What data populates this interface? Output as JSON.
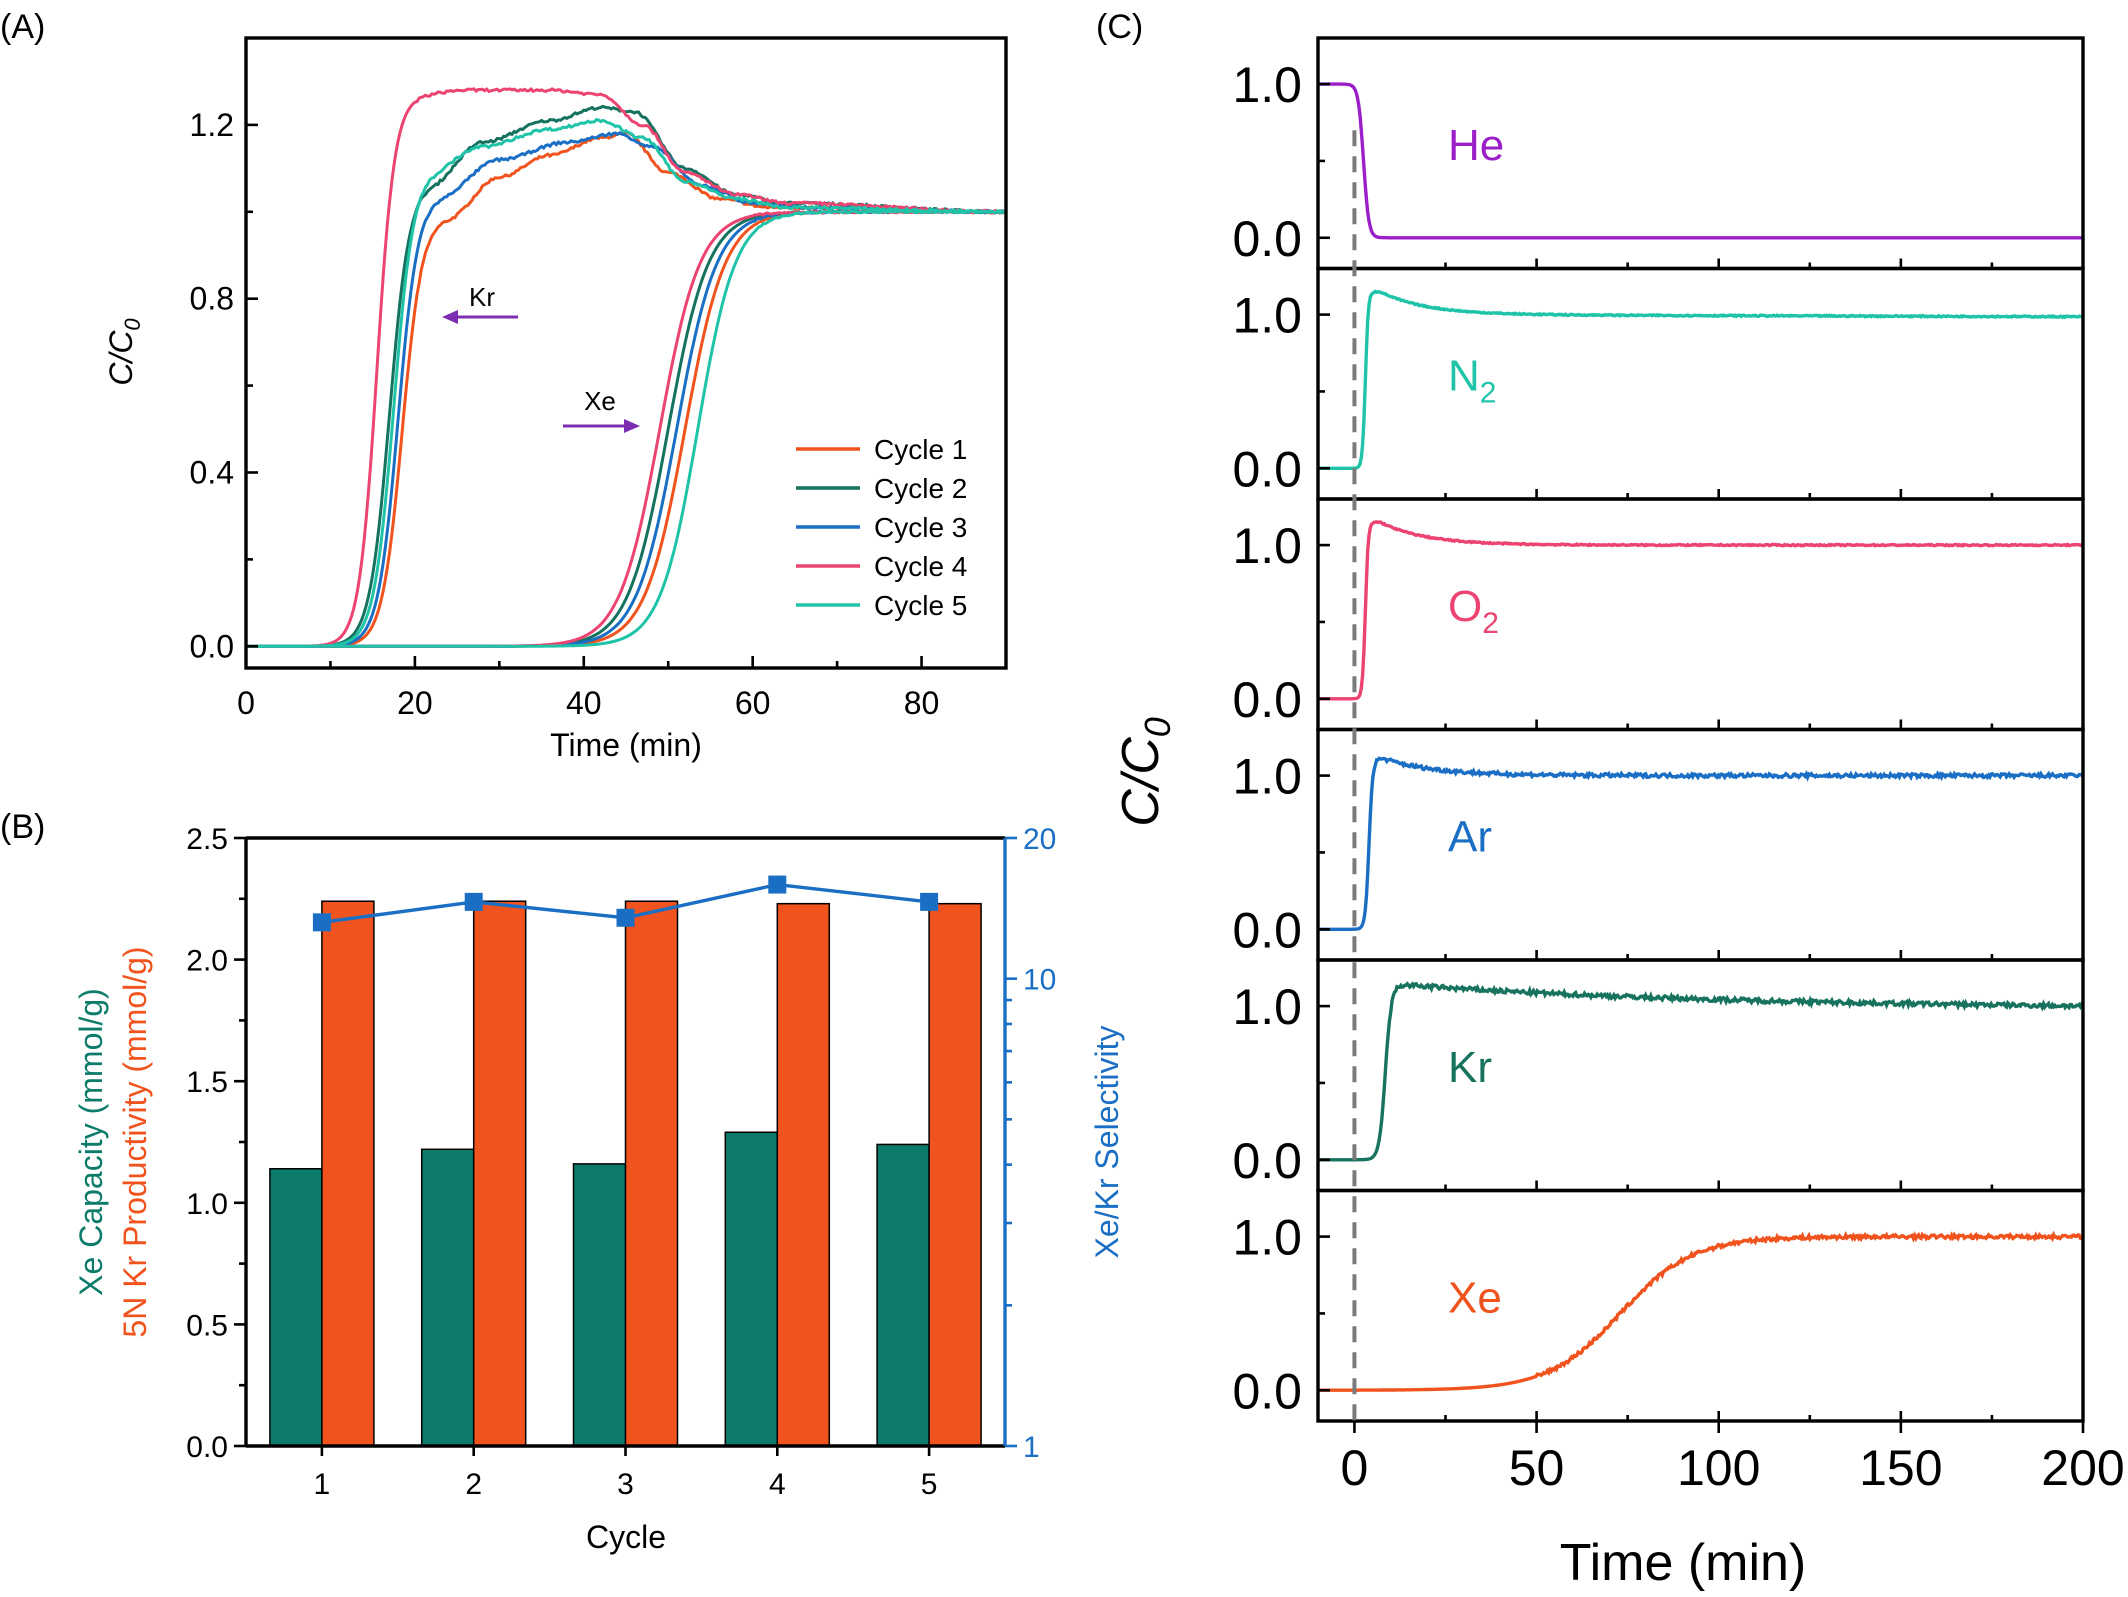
{
  "colors": {
    "cycle1": "#f0531d",
    "cycle2": "#14725e",
    "cycle3": "#1a6fc4",
    "cycle4": "#ec4471",
    "cycle5": "#1fc4a8",
    "bar_xe": "#0c7b6a",
    "bar_kr": "#f0531d",
    "selectivity": "#1a6fc4",
    "arrow": "#7b2fb0",
    "He": "#9b1fc8",
    "N2": "#1fc4a8",
    "O2": "#ec4471",
    "Ar": "#1a6fc4",
    "Kr": "#17725e",
    "Xe": "#f0531d"
  },
  "chart_data": [
    {
      "panel": "(A)",
      "type": "line",
      "xlabel": "Time (min)",
      "ylabel_main": "C/C",
      "ylabel_sub": "0",
      "xlim": [
        0,
        90
      ],
      "ylim": [
        -0.05,
        1.4
      ],
      "xticks": [
        0,
        20,
        40,
        60,
        80
      ],
      "yticks": [
        0.0,
        0.4,
        0.8,
        1.2
      ],
      "xtick_labels": [
        "0",
        "20",
        "40",
        "60",
        "80"
      ],
      "ytick_labels": [
        "0.0",
        "0.4",
        "0.8",
        "1.2"
      ],
      "annotations": [
        {
          "text": "Kr",
          "direction": "left"
        },
        {
          "text": "Xe",
          "direction": "right"
        }
      ],
      "series": [
        {
          "name": "Cycle 1",
          "kr": {
            "t50": 18.5,
            "k": 0.85,
            "peak": [
              [
                24,
                0.99
              ],
              [
                30,
                1.08
              ],
              [
                36,
                1.13
              ],
              [
                42,
                1.17
              ],
              [
                45,
                1.18
              ],
              [
                50,
                1.09
              ],
              [
                56,
                1.03
              ],
              [
                62,
                1.01
              ],
              [
                90,
                1.0
              ]
            ]
          },
          "xe": {
            "t50": 52.0,
            "k": 0.42,
            "end": 1.0
          }
        },
        {
          "name": "Cycle 2",
          "kr": {
            "t50": 17.0,
            "k": 0.85,
            "peak": [
              [
                22,
                1.07
              ],
              [
                28,
                1.16
              ],
              [
                36,
                1.21
              ],
              [
                42,
                1.24
              ],
              [
                46,
                1.23
              ],
              [
                52,
                1.1
              ],
              [
                58,
                1.04
              ],
              [
                64,
                1.02
              ],
              [
                90,
                1.0
              ]
            ]
          },
          "xe": {
            "t50": 50.0,
            "k": 0.42,
            "end": 1.0
          }
        },
        {
          "name": "Cycle 3",
          "kr": {
            "t50": 18.0,
            "k": 0.85,
            "peak": [
              [
                23,
                1.04
              ],
              [
                30,
                1.12
              ],
              [
                38,
                1.16
              ],
              [
                44,
                1.18
              ],
              [
                48,
                1.15
              ],
              [
                54,
                1.06
              ],
              [
                60,
                1.02
              ],
              [
                66,
                1.01
              ],
              [
                90,
                1.0
              ]
            ]
          },
          "xe": {
            "t50": 51.0,
            "k": 0.42,
            "end": 1.0
          }
        },
        {
          "name": "Cycle 4",
          "kr": {
            "t50": 15.5,
            "k": 0.95,
            "peak": [
              [
                20,
                1.27
              ],
              [
                26,
                1.28
              ],
              [
                36,
                1.28
              ],
              [
                42,
                1.27
              ],
              [
                47,
                1.2
              ],
              [
                52,
                1.09
              ],
              [
                58,
                1.04
              ],
              [
                64,
                1.02
              ],
              [
                90,
                1.0
              ]
            ]
          },
          "xe": {
            "t50": 49.0,
            "k": 0.42,
            "end": 1.0
          }
        },
        {
          "name": "Cycle 5",
          "kr": {
            "t50": 17.5,
            "k": 0.85,
            "peak": [
              [
                22,
                1.1
              ],
              [
                28,
                1.15
              ],
              [
                36,
                1.19
              ],
              [
                42,
                1.21
              ],
              [
                47,
                1.17
              ],
              [
                52,
                1.07
              ],
              [
                58,
                1.03
              ],
              [
                64,
                1.01
              ],
              [
                90,
                1.0
              ]
            ]
          },
          "xe": {
            "t50": 53.5,
            "k": 0.45,
            "end": 1.0
          }
        }
      ]
    },
    {
      "panel": "(B)",
      "type": "bar",
      "xlabel": "Cycle",
      "ylabel_left_1": "Xe Capacity (mmol/g)",
      "ylabel_left_2": "5N Kr Productivity (mmol/g)",
      "ylabel_right": "Xe/Kr Selectivity",
      "categories": [
        "1",
        "2",
        "3",
        "4",
        "5"
      ],
      "ylim": [
        0,
        2.5
      ],
      "yticks": [
        "0.0",
        "0.5",
        "1.0",
        "1.5",
        "2.0",
        "2.5"
      ],
      "ylim_right_log": [
        1,
        20
      ],
      "yticks_right": [
        "1",
        "10",
        "20"
      ],
      "series": [
        {
          "name": "Xe Capacity",
          "axis": "left",
          "values": [
            1.14,
            1.22,
            1.16,
            1.29,
            1.24
          ]
        },
        {
          "name": "5N Kr Productivity",
          "axis": "left",
          "values": [
            2.24,
            2.24,
            2.24,
            2.23,
            2.23
          ]
        },
        {
          "name": "Xe/Kr Selectivity",
          "axis": "right",
          "type": "line",
          "values": [
            13.2,
            14.6,
            13.5,
            15.9,
            14.6
          ]
        }
      ]
    },
    {
      "panel": "(C)",
      "type": "line",
      "xlabel": "Time (min)",
      "ylabel_main": "C/C",
      "ylabel_sub": "0",
      "xlim": [
        -10,
        200
      ],
      "xticks": [
        0,
        50,
        100,
        150,
        200
      ],
      "xtick_labels": [
        "0",
        "50",
        "100",
        "150",
        "200"
      ],
      "ytick_labels": [
        "0.0",
        "1.0"
      ],
      "subplot_ylim": [
        -0.2,
        1.3
      ],
      "series": [
        {
          "name": "He",
          "label_main": "He",
          "label_sub": "",
          "kind": "drop",
          "t50": 2.5,
          "k": 1.4,
          "end": 1.0
        },
        {
          "name": "N2",
          "label_main": "N",
          "label_sub": "2",
          "kind": "rise",
          "t50": 3.0,
          "k": 2.5,
          "peak": 1.15,
          "decay": 0.08,
          "noise": 0.004
        },
        {
          "name": "O2",
          "label_main": "O",
          "label_sub": "2",
          "kind": "rise",
          "t50": 3.0,
          "k": 2.5,
          "peak": 1.15,
          "decay": 0.08,
          "noise": 0.004
        },
        {
          "name": "Ar",
          "label_main": "Ar",
          "label_sub": "",
          "kind": "rise",
          "t50": 4.0,
          "k": 2.0,
          "peak": 1.11,
          "decay": 0.07,
          "noise": 0.012
        },
        {
          "name": "Kr",
          "label_main": "Kr",
          "label_sub": "",
          "kind": "rise",
          "t50": 8.5,
          "k": 1.2,
          "peak": 1.14,
          "decay": 0.012,
          "noise": 0.014
        },
        {
          "name": "Xe",
          "label_main": "Xe",
          "label_sub": "",
          "kind": "sigmoid",
          "t50": 73.0,
          "k": 0.1,
          "end": 1.0,
          "noise": 0.012
        }
      ]
    }
  ]
}
